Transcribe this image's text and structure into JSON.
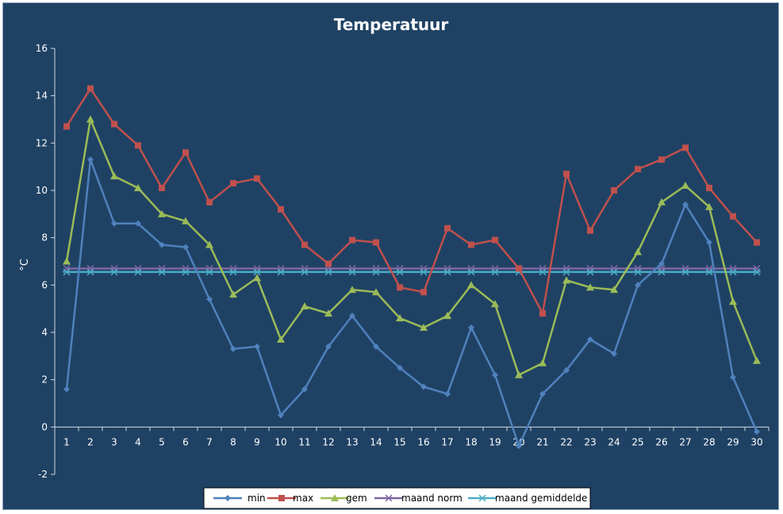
{
  "chart_data": {
    "type": "line",
    "title": "Temperatuur",
    "xlabel": "",
    "ylabel": "°C",
    "ylim": [
      -2,
      16
    ],
    "yticks": [
      -2,
      0,
      2,
      4,
      6,
      8,
      10,
      12,
      14,
      16
    ],
    "categories": [
      "1",
      "2",
      "3",
      "4",
      "5",
      "6",
      "7",
      "8",
      "9",
      "10",
      "11",
      "12",
      "13",
      "14",
      "15",
      "16",
      "17",
      "18",
      "19",
      "20",
      "21",
      "22",
      "23",
      "24",
      "25",
      "26",
      "27",
      "28",
      "29",
      "30"
    ],
    "grid": false,
    "legend_position": "bottom",
    "series": [
      {
        "name": "min",
        "color": "#4f81bd",
        "marker": "diamond",
        "values": [
          1.6,
          11.3,
          8.6,
          8.6,
          7.7,
          7.6,
          5.4,
          3.3,
          3.4,
          0.5,
          1.6,
          3.4,
          4.7,
          3.4,
          2.5,
          1.7,
          1.4,
          4.2,
          2.2,
          -0.8,
          1.4,
          2.4,
          3.7,
          3.1,
          6.0,
          6.9,
          9.4,
          7.8,
          2.1,
          -0.2
        ]
      },
      {
        "name": "max",
        "color": "#c0504d",
        "marker": "square",
        "values": [
          12.7,
          14.3,
          12.8,
          11.9,
          10.1,
          11.6,
          9.5,
          10.3,
          10.5,
          9.2,
          7.7,
          6.9,
          7.9,
          7.8,
          5.9,
          5.7,
          8.4,
          7.7,
          7.9,
          6.7,
          4.8,
          10.7,
          8.3,
          10.0,
          10.9,
          11.3,
          11.8,
          10.1,
          8.9,
          7.8
        ]
      },
      {
        "name": "gem",
        "color": "#9bbb59",
        "marker": "triangle",
        "values": [
          7.0,
          13.0,
          10.6,
          10.1,
          9.0,
          8.7,
          7.7,
          5.6,
          6.3,
          3.7,
          5.1,
          4.8,
          5.8,
          5.7,
          4.6,
          4.2,
          4.7,
          6.0,
          5.2,
          2.2,
          2.7,
          6.2,
          5.9,
          5.8,
          7.4,
          9.5,
          10.2,
          9.3,
          5.3,
          2.8
        ]
      },
      {
        "name": "maand norm",
        "color": "#8064a2",
        "marker": "x",
        "values": [
          6.7,
          6.7,
          6.7,
          6.7,
          6.7,
          6.7,
          6.7,
          6.7,
          6.7,
          6.7,
          6.7,
          6.7,
          6.7,
          6.7,
          6.7,
          6.7,
          6.7,
          6.7,
          6.7,
          6.7,
          6.7,
          6.7,
          6.7,
          6.7,
          6.7,
          6.7,
          6.7,
          6.7,
          6.7,
          6.7
        ]
      },
      {
        "name": "maand gemiddelde",
        "color": "#4bacc6",
        "marker": "star",
        "values": [
          6.55,
          6.55,
          6.55,
          6.55,
          6.55,
          6.55,
          6.55,
          6.55,
          6.55,
          6.55,
          6.55,
          6.55,
          6.55,
          6.55,
          6.55,
          6.55,
          6.55,
          6.55,
          6.55,
          6.55,
          6.55,
          6.55,
          6.55,
          6.55,
          6.55,
          6.55,
          6.55,
          6.55,
          6.55,
          6.55
        ]
      }
    ]
  }
}
